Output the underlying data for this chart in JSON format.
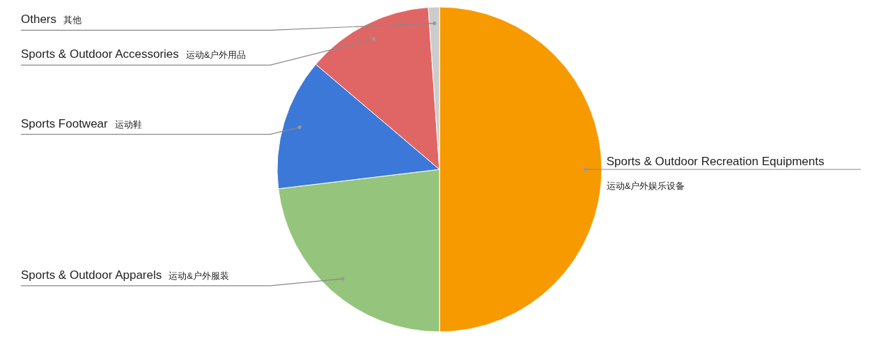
{
  "chart_data": {
    "type": "pie",
    "categories": [
      "Sports & Outdoor Recreation Equipments\n运动&户外娱乐设备",
      "Sports & Outdoor Apparels 运动&户外服装",
      "Sports Footwear 运动鞋",
      "Sports & Outdoor Accessories 运动&户外用品",
      "Others 其他"
    ],
    "values": [
      50,
      23.1,
      13.1,
      12.7,
      1.1
    ],
    "colors": [
      "#f79a00",
      "#95c47c",
      "#3b78d8",
      "#e06666",
      "#cccccc"
    ]
  }
}
